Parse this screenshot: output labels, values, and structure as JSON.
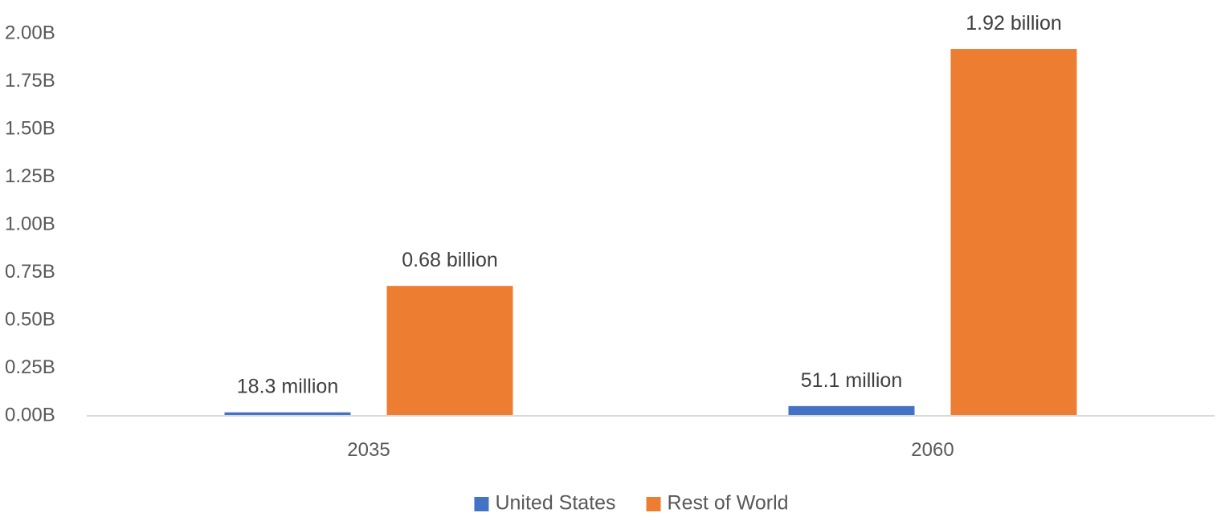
{
  "chart_data": {
    "type": "bar",
    "categories": [
      "2035",
      "2060"
    ],
    "series": [
      {
        "name": "United States",
        "color": "#4472C4",
        "values": [
          18300000,
          51100000
        ],
        "data_labels": [
          "18.3 million",
          "51.1 million"
        ]
      },
      {
        "name": "Rest of World",
        "color": "#ED7D31",
        "values": [
          680000000,
          1920000000
        ],
        "data_labels": [
          "0.68 billion",
          "1.92 billion"
        ]
      }
    ],
    "yticks": [
      0,
      250000000,
      500000000,
      750000000,
      1000000000,
      1250000000,
      1500000000,
      1750000000,
      2000000000
    ],
    "ytick_labels": [
      "0.00B",
      "0.25B",
      "0.50B",
      "0.75B",
      "1.00B",
      "1.25B",
      "1.50B",
      "1.75B",
      "2.00B"
    ],
    "ylim": [
      0,
      2000000000
    ],
    "grid": false,
    "legend": "bottom",
    "title": "",
    "xlabel": "",
    "ylabel": ""
  }
}
